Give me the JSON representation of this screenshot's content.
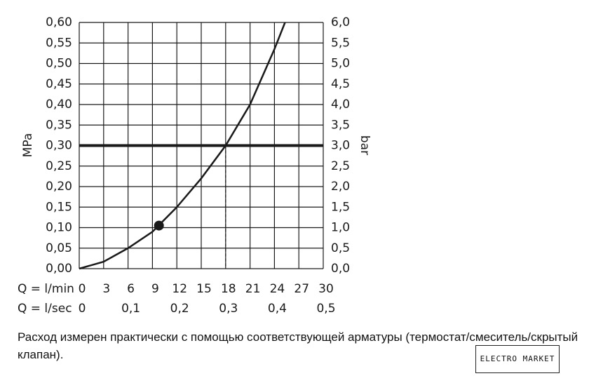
{
  "chart_data": {
    "type": "line",
    "x": [
      0,
      3,
      6,
      9,
      12,
      15,
      18,
      21,
      24,
      25.3
    ],
    "series": [
      {
        "color": "#1a1a1a",
        "values": [
          0,
          0.017,
          0.05,
          0.09,
          0.15,
          0.22,
          0.3,
          0.4,
          0.535,
          0.6
        ]
      }
    ],
    "xlim": [
      0,
      30
    ],
    "xticks": [
      0,
      3,
      6,
      9,
      12,
      15,
      18,
      21,
      24,
      27,
      30
    ],
    "xlabel": "Q = l/min",
    "x2lim": [
      0,
      0.5
    ],
    "x2ticks": [
      0,
      {
        "value": 0.1,
        "label": "0,1"
      },
      {
        "value": 0.2,
        "label": "0,2"
      },
      {
        "value": 0.3,
        "label": "0,3"
      },
      {
        "value": 0.4,
        "label": "0,4"
      },
      {
        "value": 0.5,
        "label": "0,5"
      }
    ],
    "x2label": "Q = l/sec",
    "ylim": [
      0,
      0.6
    ],
    "yticks": [
      {
        "value": 0,
        "label": "0,00"
      },
      {
        "value": 0.05,
        "label": "0,05"
      },
      {
        "value": 0.1,
        "label": "0,10"
      },
      {
        "value": 0.15,
        "label": "0,15"
      },
      {
        "value": 0.2,
        "label": "0,20"
      },
      {
        "value": 0.25,
        "label": "0,25"
      },
      {
        "value": 0.3,
        "label": "0,30"
      },
      {
        "value": 0.35,
        "label": "0,35"
      },
      {
        "value": 0.4,
        "label": "0,40"
      },
      {
        "value": 0.45,
        "label": "0,45"
      },
      {
        "value": 0.5,
        "label": "0,50"
      },
      {
        "value": 0.55,
        "label": "0,55"
      },
      {
        "value": 0.6,
        "label": "0,60"
      }
    ],
    "ylabel": "MPa",
    "y2lim": [
      0,
      6
    ],
    "y2ticks": [
      {
        "value": 0,
        "label": "0,0"
      },
      {
        "value": 0.5,
        "label": "0,5"
      },
      {
        "value": 1,
        "label": "1,0"
      },
      {
        "value": 1.5,
        "label": "1,5"
      },
      {
        "value": 2,
        "label": "2,0"
      },
      {
        "value": 2.5,
        "label": "2,5"
      },
      {
        "value": 3,
        "label": "3,0"
      },
      {
        "value": 3.5,
        "label": "3,5"
      },
      {
        "value": 4,
        "label": "4,0"
      },
      {
        "value": 4.5,
        "label": "4,5"
      },
      {
        "value": 5,
        "label": "5,0"
      },
      {
        "value": 5.5,
        "label": "5,5"
      },
      {
        "value": 6,
        "label": "6,0"
      }
    ],
    "y2label": "bar",
    "grid": true,
    "hline": 0.3,
    "vline": 18,
    "marker": {
      "x": 9.8,
      "y": 0.105
    }
  },
  "caption": "Расход измерен практически с помощью соответствующей арматуры (термостат/смеситель/скрытый клапан).",
  "logo": "ELECTRO MARKET"
}
